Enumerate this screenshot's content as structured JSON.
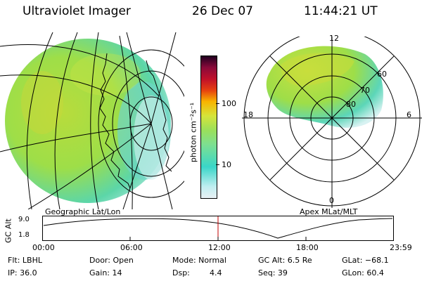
{
  "header": {
    "instrument": "Ultraviolet Imager",
    "date": "26 Dec 07",
    "time": "11:44:21 UT"
  },
  "colorbar": {
    "unit_label": "photon cm⁻²s⁻¹",
    "ticks": [
      "100",
      "10"
    ],
    "colors": [
      "#e8f0f4",
      "#3ad6c8",
      "#9be05a",
      "#d6e43a",
      "#f8b400",
      "#e01010",
      "#8a0a3a",
      "#200020"
    ]
  },
  "left_panel": {
    "caption": "Geographic Lat/Lon"
  },
  "right_panel": {
    "caption": "Apex MLat/MLT",
    "mlt_labels": {
      "top": "12",
      "bottom": "0",
      "left": "18",
      "right": "6"
    },
    "lat_labels": [
      "60",
      "70",
      "80"
    ]
  },
  "timeline": {
    "ylabel": "GC Alt",
    "y_ticks": [
      "9.0",
      "1.8"
    ],
    "x_ticks": [
      "00:00",
      "06:00",
      "12:00",
      "18:00",
      "23:59"
    ],
    "marker_color": "#c00000"
  },
  "footer": {
    "row1": {
      "flt": "Flt: LBHL",
      "door": "Door: Open",
      "mode": "Mode: Normal",
      "gcalt": "GC Alt: 6.5 Re",
      "glat": "GLat: −68.1"
    },
    "row2": {
      "ip": "IP: 36.0",
      "gain": "Gain: 14",
      "dsp_label": "Dsp:",
      "dsp_value": "4.4",
      "seq": "Seq: 39",
      "glon": "GLon: 60.4"
    }
  }
}
